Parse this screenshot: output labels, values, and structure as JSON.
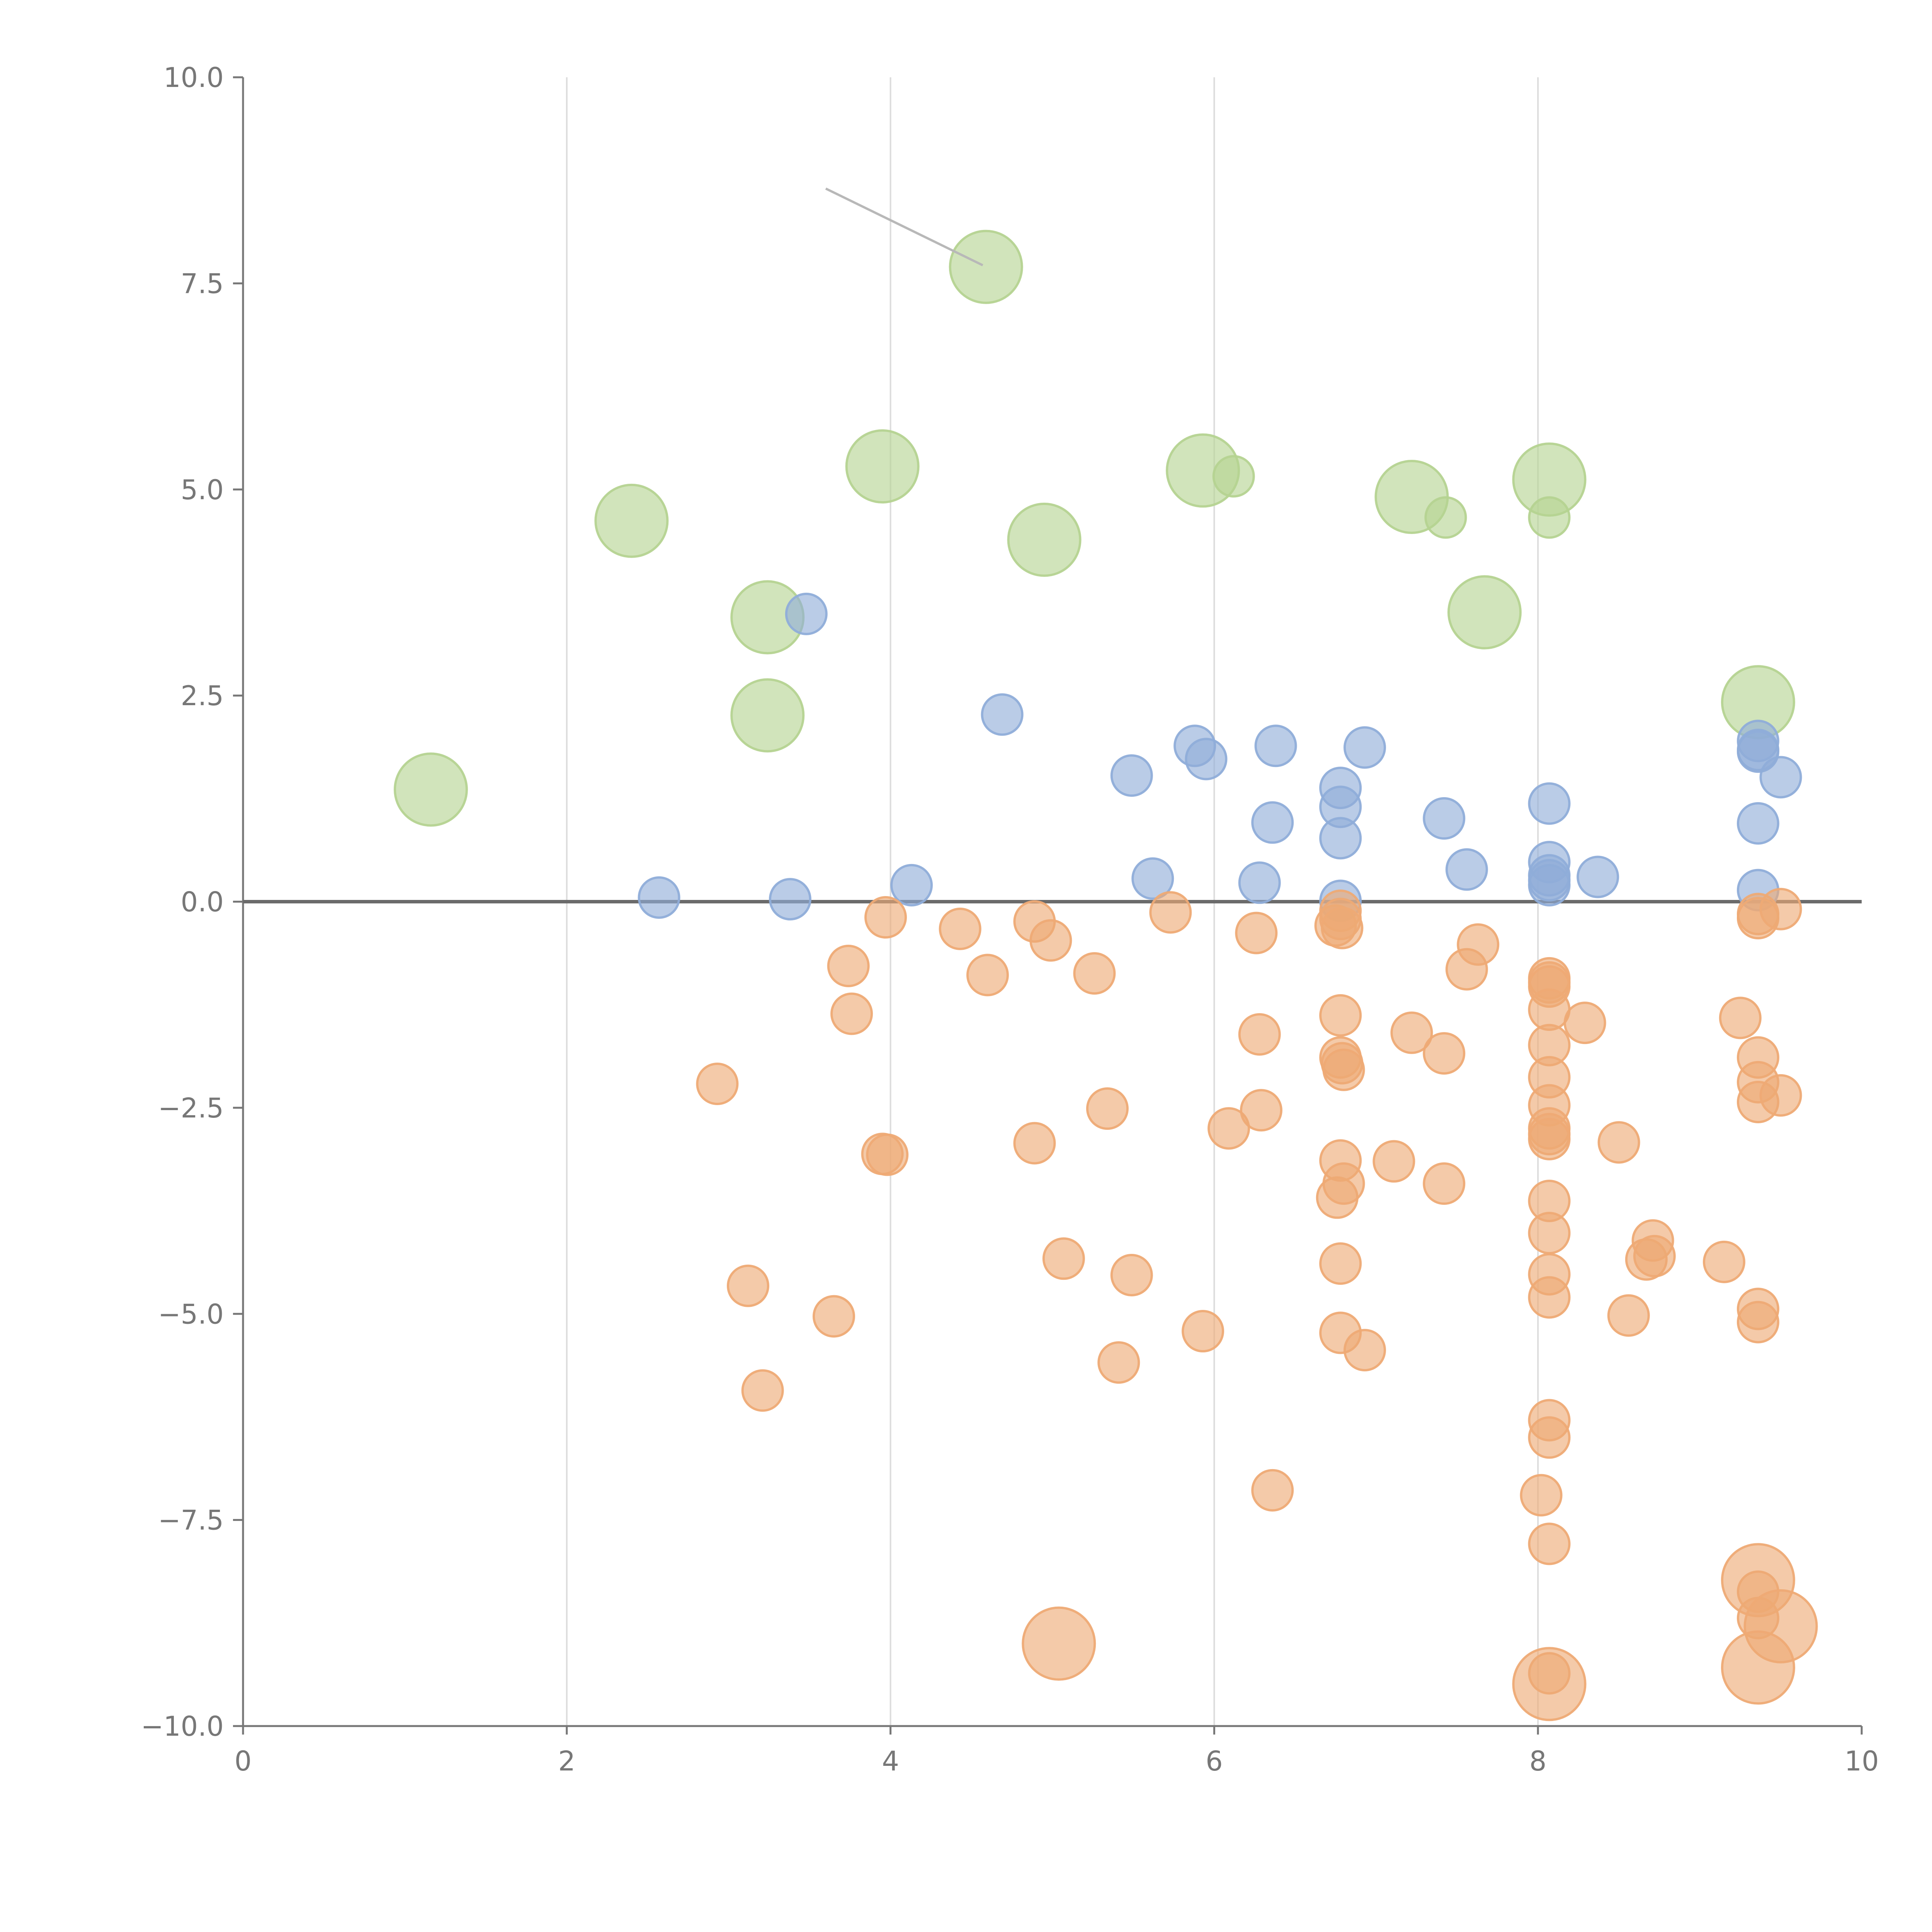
{
  "chart_data": {
    "type": "scatter",
    "title": "",
    "xlabel": "",
    "ylabel": "",
    "xlim": [
      0,
      10
    ],
    "ylim": [
      -10,
      10
    ],
    "x_ticks": [
      "0",
      "2",
      "4",
      "6",
      "8",
      "10"
    ],
    "y_ticks": [
      "10.0",
      "7.5",
      "5.0",
      "2.5",
      "0.0",
      "−2.5",
      "−5.0",
      "−7.5",
      "−10.0"
    ],
    "grid": {
      "vertical": true,
      "horizontal": false
    },
    "zero_line": true,
    "colors": {
      "green": "#b5d391",
      "blue": "#8fadd9",
      "orange": "#eeaa75",
      "axis": "#777777",
      "grid": "#dcdcdc"
    },
    "series": [
      {
        "color": "green",
        "size": "large",
        "points": [
          [
            1.16,
            1.36
          ],
          [
            2.4,
            4.62
          ],
          [
            3.24,
            3.45
          ],
          [
            3.24,
            2.26
          ],
          [
            3.95,
            5.28
          ],
          [
            4.59,
            7.7
          ],
          [
            4.95,
            4.39
          ],
          [
            5.93,
            5.23
          ],
          [
            7.22,
            4.91
          ],
          [
            7.67,
            3.51
          ],
          [
            8.07,
            5.12
          ],
          [
            9.36,
            2.42
          ]
        ]
      },
      {
        "color": "green",
        "size": "small",
        "points": [
          [
            6.12,
            5.16
          ],
          [
            7.43,
            4.66
          ],
          [
            8.07,
            4.66
          ]
        ]
      },
      {
        "color": "blue",
        "size": "small",
        "points": [
          [
            2.57,
            0.05
          ],
          [
            3.38,
            0.03
          ],
          [
            3.48,
            3.49
          ],
          [
            4.13,
            0.2
          ],
          [
            4.69,
            2.27
          ],
          [
            5.49,
            1.53
          ],
          [
            5.62,
            0.28
          ],
          [
            5.88,
            1.89
          ],
          [
            5.95,
            1.73
          ],
          [
            6.28,
            0.23
          ],
          [
            6.36,
            0.96
          ],
          [
            6.38,
            1.89
          ],
          [
            6.78,
            1.38
          ],
          [
            6.78,
            1.15
          ],
          [
            6.78,
            0.77
          ],
          [
            6.78,
            0.01
          ],
          [
            6.93,
            1.87
          ],
          [
            7.42,
            1.01
          ],
          [
            7.56,
            0.39
          ],
          [
            8.07,
            1.19
          ],
          [
            8.07,
            0.48
          ],
          [
            8.07,
            0.32
          ],
          [
            8.07,
            0.26
          ],
          [
            8.07,
            0.2
          ],
          [
            8.37,
            0.3
          ],
          [
            9.36,
            1.95
          ],
          [
            9.36,
            1.84
          ],
          [
            9.36,
            1.82
          ],
          [
            9.36,
            0.95
          ],
          [
            9.36,
            0.14
          ],
          [
            9.5,
            1.51
          ]
        ]
      },
      {
        "color": "orange",
        "size": "small",
        "points": [
          [
            2.93,
            -2.21
          ],
          [
            3.12,
            -4.66
          ],
          [
            3.21,
            -5.93
          ],
          [
            3.65,
            -5.03
          ],
          [
            3.74,
            -0.78
          ],
          [
            3.76,
            -1.36
          ],
          [
            3.95,
            -3.06
          ],
          [
            3.98,
            -3.07
          ],
          [
            3.97,
            -0.19
          ],
          [
            4.43,
            -0.33
          ],
          [
            4.6,
            -0.89
          ],
          [
            4.89,
            -0.24
          ],
          [
            4.89,
            -2.93
          ],
          [
            4.99,
            -0.47
          ],
          [
            5.07,
            -4.33
          ],
          [
            5.26,
            -0.87
          ],
          [
            5.34,
            -2.51
          ],
          [
            5.41,
            -5.59
          ],
          [
            5.49,
            -4.53
          ],
          [
            5.73,
            -0.13
          ],
          [
            5.93,
            -5.21
          ],
          [
            6.09,
            -2.75
          ],
          [
            6.26,
            -0.38
          ],
          [
            6.28,
            -1.61
          ],
          [
            6.29,
            -2.53
          ],
          [
            6.36,
            -7.14
          ],
          [
            6.75,
            -0.29
          ],
          [
            6.76,
            -3.59
          ],
          [
            6.78,
            -0.11
          ],
          [
            6.78,
            -0.21
          ],
          [
            6.79,
            -0.32
          ],
          [
            6.78,
            -1.38
          ],
          [
            6.78,
            -1.89
          ],
          [
            6.79,
            -1.96
          ],
          [
            6.8,
            -2.04
          ],
          [
            6.78,
            -3.14
          ],
          [
            6.8,
            -3.42
          ],
          [
            6.78,
            -4.39
          ],
          [
            6.78,
            -5.23
          ],
          [
            6.93,
            -5.44
          ],
          [
            7.11,
            -3.15
          ],
          [
            7.22,
            -1.59
          ],
          [
            7.42,
            -1.84
          ],
          [
            7.42,
            -3.42
          ],
          [
            7.56,
            -0.82
          ],
          [
            7.63,
            -0.52
          ],
          [
            8.02,
            -7.2
          ],
          [
            8.07,
            -0.93
          ],
          [
            8.07,
            -0.98
          ],
          [
            8.07,
            -1.03
          ],
          [
            8.07,
            -1.31
          ],
          [
            8.07,
            -1.74
          ],
          [
            8.07,
            -2.13
          ],
          [
            8.07,
            -2.47
          ],
          [
            8.07,
            -2.75
          ],
          [
            8.07,
            -2.82
          ],
          [
            8.07,
            -2.88
          ],
          [
            8.07,
            -3.63
          ],
          [
            8.07,
            -4.02
          ],
          [
            8.07,
            -4.52
          ],
          [
            8.07,
            -4.8
          ],
          [
            8.07,
            -6.29
          ],
          [
            8.07,
            -6.5
          ],
          [
            8.07,
            -7.79
          ],
          [
            8.07,
            -9.36
          ],
          [
            8.29,
            -1.47
          ],
          [
            8.5,
            -2.92
          ],
          [
            8.56,
            -5.02
          ],
          [
            8.67,
            -4.34
          ],
          [
            8.71,
            -4.11
          ],
          [
            8.72,
            -4.3
          ],
          [
            9.15,
            -4.37
          ],
          [
            9.25,
            -1.41
          ],
          [
            9.36,
            -0.15
          ],
          [
            9.36,
            -0.2
          ],
          [
            9.36,
            -1.89
          ],
          [
            9.36,
            -2.19
          ],
          [
            9.36,
            -2.43
          ],
          [
            9.36,
            -4.94
          ],
          [
            9.36,
            -5.1
          ],
          [
            9.36,
            -8.37
          ],
          [
            9.36,
            -8.69
          ],
          [
            9.5,
            -0.09
          ],
          [
            9.5,
            -2.35
          ]
        ]
      },
      {
        "color": "orange",
        "size": "large",
        "points": [
          [
            5.04,
            -9.0
          ],
          [
            8.07,
            -9.49
          ],
          [
            9.36,
            -8.23
          ],
          [
            9.5,
            -8.79
          ],
          [
            9.36,
            -9.29
          ]
        ]
      }
    ],
    "annotations": [
      {
        "type": "leader-line",
        "from": [
          3.6,
          8.65
        ],
        "to": [
          4.57,
          7.72
        ]
      }
    ]
  }
}
